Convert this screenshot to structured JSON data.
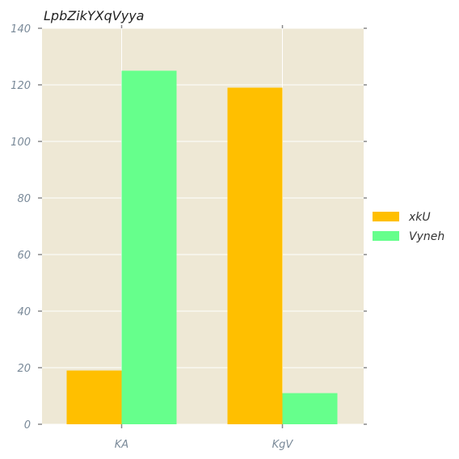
{
  "chart_data": {
    "type": "bar",
    "title": "LpbZikYXqVyya",
    "xlabel": "",
    "ylabel": "",
    "categories": [
      "KA",
      "KgV"
    ],
    "series": [
      {
        "name": "xkU",
        "values": [
          19,
          119
        ],
        "color": "#FFBF00"
      },
      {
        "name": "Vyneh",
        "values": [
          125,
          11
        ],
        "color": "#66FF8C"
      }
    ],
    "ylim": [
      0,
      140
    ],
    "yticks": [
      0,
      20,
      40,
      60,
      80,
      100,
      120,
      140
    ],
    "grid": true,
    "legend_position": "right",
    "plot_background": "#EEE8D5"
  }
}
